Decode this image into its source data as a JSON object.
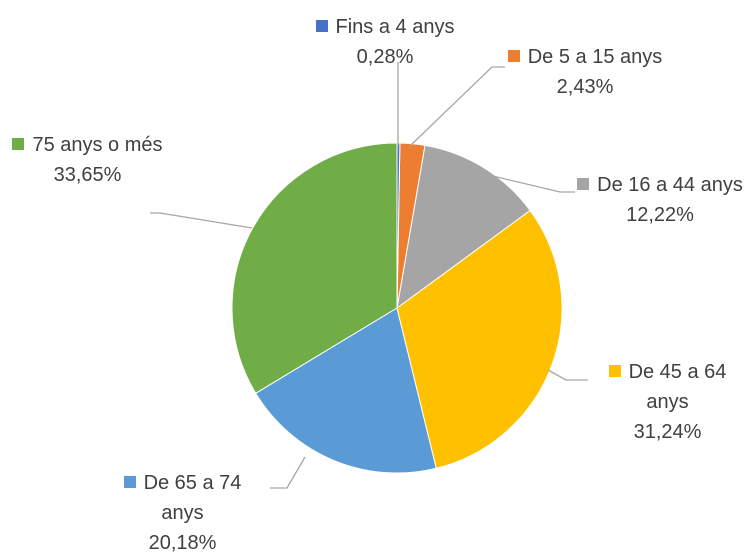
{
  "chart_data": {
    "type": "pie",
    "categories": [
      "Fins a 4 anys",
      "De 5 a 15 anys",
      "De 16 a 44 anys",
      "De 45 a 64 anys",
      "De 65 a 74 anys",
      "75 anys o més"
    ],
    "values": [
      0.28,
      2.43,
      12.22,
      31.24,
      20.18,
      33.65
    ],
    "value_labels": [
      "0,28%",
      "2,43%",
      "12,22%",
      "31,24%",
      "20,18%",
      "33,65%"
    ],
    "colors": [
      "#4472c4",
      "#ed7d31",
      "#a5a5a5",
      "#ffc000",
      "#5b9bd5",
      "#70ad47"
    ]
  }
}
